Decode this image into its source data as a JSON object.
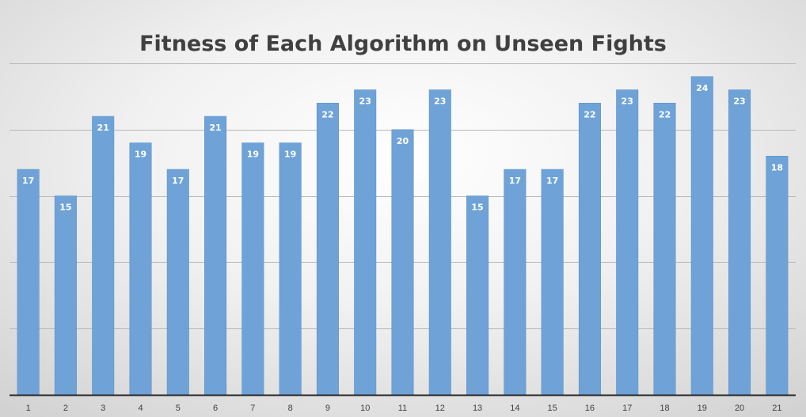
{
  "chart_data": {
    "type": "bar",
    "title": "Fitness of Each Algorithm on Unseen Fights",
    "xlabel": "",
    "ylabel": "",
    "categories": [
      "1",
      "2",
      "3",
      "4",
      "5",
      "6",
      "7",
      "8",
      "9",
      "10",
      "11",
      "12",
      "13",
      "14",
      "15",
      "16",
      "17",
      "18",
      "19",
      "20",
      "21"
    ],
    "values": [
      17,
      15,
      21,
      19,
      17,
      21,
      19,
      19,
      22,
      23,
      20,
      23,
      15,
      17,
      17,
      22,
      23,
      22,
      24,
      23,
      18
    ],
    "ylim": [
      0,
      25
    ],
    "y_axis_labels_visible": false,
    "grid": true,
    "legend": "none",
    "data_labels": "inside-end",
    "colors": {
      "bar": "#6fa3d7",
      "bar_edge": "#5b93cc",
      "gridline": "#b8b8b8",
      "axis": "#262626",
      "title": "#404040",
      "data_label": "#ffffff",
      "tick_label": "#404040"
    }
  }
}
